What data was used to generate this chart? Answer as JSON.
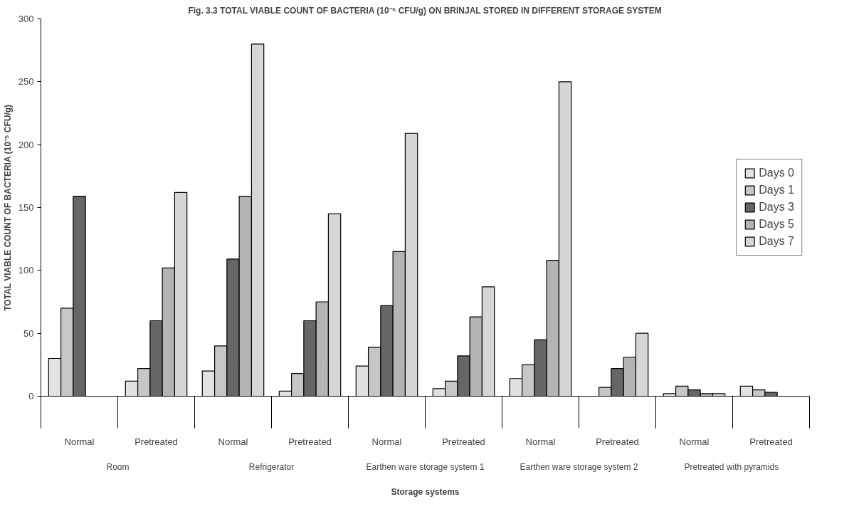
{
  "chart_data": {
    "type": "bar",
    "title": "Fig. 3.3 TOTAL VIABLE COUNT OF BACTERIA (10⁻⁵ CFU/g) ON BRINJAL STORED IN DIFFERENT STORAGE SYSTEM",
    "xlabel": "Storage systems",
    "ylabel": "TOTAL VIABLE COUNT OF BACTERIA (10⁻⁵ CFU/g)",
    "categories": [
      "Normal",
      "Pretreated",
      "Normal",
      "Pretreated",
      "Normal",
      "Pretreated",
      "Normal",
      "Pretreated",
      "Normal",
      "Pretreated"
    ],
    "annotations": [
      "Room",
      "Refrigerator",
      "Earthen ware storage system 1",
      "Earthen ware storage system 2",
      "Pretreated  with pyramids"
    ],
    "series": [
      {
        "name": "Days 0",
        "color": "#e2e2e2",
        "values": [
          30,
          12,
          20,
          4,
          24,
          6,
          14,
          null,
          2,
          8
        ]
      },
      {
        "name": "Days 1",
        "color": "#c6c6c6",
        "values": [
          70,
          22,
          40,
          18,
          39,
          12,
          25,
          7,
          8,
          5
        ]
      },
      {
        "name": "Days 3",
        "color": "#666666",
        "values": [
          159,
          60,
          109,
          60,
          72,
          32,
          45,
          22,
          5,
          3
        ]
      },
      {
        "name": "Days 5",
        "color": "#b4b4b4",
        "values": [
          null,
          102,
          159,
          75,
          115,
          63,
          108,
          31,
          2,
          null
        ]
      },
      {
        "name": "Days 7",
        "color": "#d6d6d6",
        "values": [
          null,
          162,
          280,
          145,
          209,
          87,
          250,
          50,
          2,
          null
        ]
      }
    ],
    "ylim": [
      0,
      300
    ],
    "yticks": [
      0,
      50,
      100,
      150,
      200,
      250,
      300
    ],
    "grid": false,
    "legend": "right"
  }
}
